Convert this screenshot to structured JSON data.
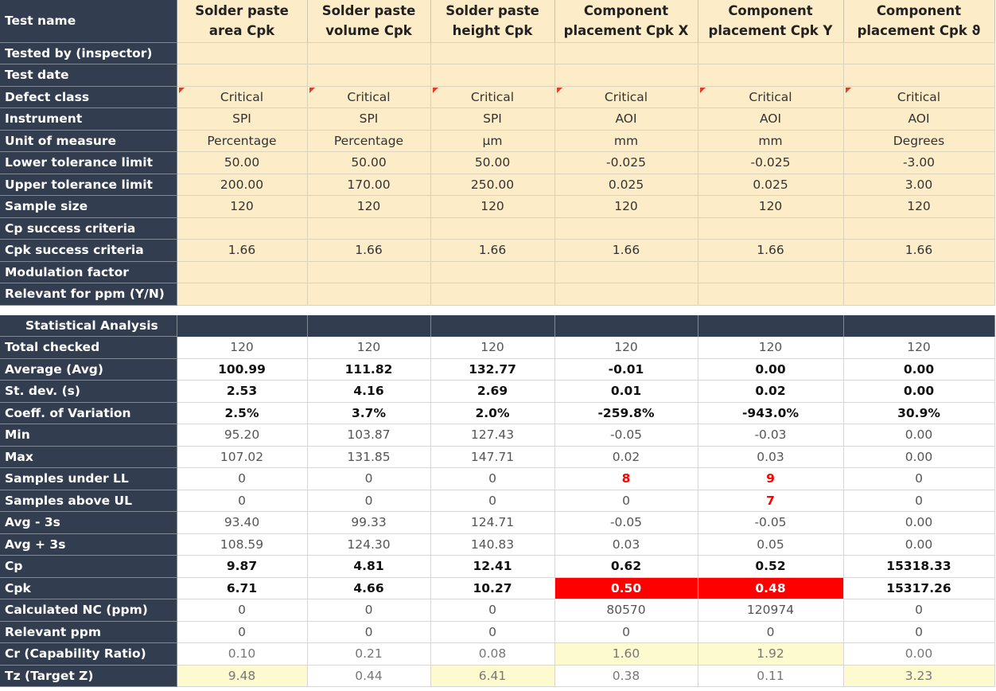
{
  "header": {
    "label": "Test name",
    "columns": [
      "Solder paste area Cpk",
      "Solder paste volume Cpk",
      "Solder paste height Cpk",
      "Component placement Cpk X",
      "Component placement Cpk Y",
      "Component placement Cpk ϑ"
    ]
  },
  "info_rows": [
    {
      "label": "Tested by (inspector)",
      "values": [
        "",
        "",
        "",
        "",
        "",
        ""
      ]
    },
    {
      "label": "Test date",
      "values": [
        "",
        "",
        "",
        "",
        "",
        ""
      ]
    },
    {
      "label": "Defect class",
      "values": [
        "Critical",
        "Critical",
        "Critical",
        "Critical",
        "Critical",
        "Critical"
      ],
      "flagged": true
    },
    {
      "label": "Instrument",
      "values": [
        "SPI",
        "SPI",
        "SPI",
        "AOI",
        "AOI",
        "AOI"
      ]
    },
    {
      "label": "Unit of measure",
      "values": [
        "Percentage",
        "Percentage",
        "µm",
        "mm",
        "mm",
        "Degrees"
      ]
    },
    {
      "label": "Lower tolerance limit",
      "values": [
        "50.00",
        "50.00",
        "50.00",
        "-0.025",
        "-0.025",
        "-3.00"
      ]
    },
    {
      "label": "Upper tolerance limit",
      "values": [
        "200.00",
        "170.00",
        "250.00",
        "0.025",
        "0.025",
        "3.00"
      ]
    },
    {
      "label": "Sample size",
      "values": [
        "120",
        "120",
        "120",
        "120",
        "120",
        "120"
      ]
    },
    {
      "label": "Cp success criteria",
      "values": [
        "",
        "",
        "",
        "",
        "",
        ""
      ]
    },
    {
      "label": "Cpk success criteria",
      "values": [
        "1.66",
        "1.66",
        "1.66",
        "1.66",
        "1.66",
        "1.66"
      ]
    },
    {
      "label": "Modulation factor",
      "values": [
        "",
        "",
        "",
        "",
        "",
        ""
      ]
    },
    {
      "label": "Relevant for ppm (Y/N)",
      "values": [
        "",
        "",
        "",
        "",
        "",
        ""
      ]
    }
  ],
  "stats_section": {
    "title": "Statistical Analysis",
    "rows": [
      {
        "label": "Total checked",
        "values": [
          "120",
          "120",
          "120",
          "120",
          "120",
          "120"
        ]
      },
      {
        "label": "Average (Avg)",
        "values": [
          "100.99",
          "111.82",
          "132.77",
          "-0.01",
          "0.00",
          "0.00"
        ],
        "bold": true
      },
      {
        "label": "St. dev. (s)",
        "values": [
          "2.53",
          "4.16",
          "2.69",
          "0.01",
          "0.02",
          "0.00"
        ],
        "bold": true
      },
      {
        "label": "Coeff. of Variation",
        "values": [
          "2.5%",
          "3.7%",
          "2.0%",
          "-259.8%",
          "-943.0%",
          "30.9%"
        ],
        "bold": true
      },
      {
        "label": "Min",
        "values": [
          "95.20",
          "103.87",
          "127.43",
          "-0.05",
          "-0.03",
          "0.00"
        ]
      },
      {
        "label": "Max",
        "values": [
          "107.02",
          "131.85",
          "147.71",
          "0.02",
          "0.03",
          "0.00"
        ]
      },
      {
        "label": "Samples under LL",
        "values": [
          "0",
          "0",
          "0",
          "8",
          "9",
          "0"
        ],
        "warn_cells": [
          3,
          4
        ]
      },
      {
        "label": "Samples above UL",
        "values": [
          "0",
          "0",
          "0",
          "0",
          "7",
          "0"
        ],
        "warn_cells": [
          4
        ]
      },
      {
        "label": "Avg - 3s",
        "values": [
          "93.40",
          "99.33",
          "124.71",
          "-0.05",
          "-0.05",
          "0.00"
        ]
      },
      {
        "label": "Avg + 3s",
        "values": [
          "108.59",
          "124.30",
          "140.83",
          "0.03",
          "0.05",
          "0.00"
        ]
      },
      {
        "label": "Cp",
        "values": [
          "9.87",
          "4.81",
          "12.41",
          "0.62",
          "0.52",
          "15318.33"
        ],
        "bold": true
      },
      {
        "label": "Cpk",
        "values": [
          "6.71",
          "4.66",
          "10.27",
          "0.50",
          "0.48",
          "15317.26"
        ],
        "bold": true,
        "alarm_cells": [
          3,
          4
        ]
      },
      {
        "label": "Calculated NC (ppm)",
        "values": [
          "0",
          "0",
          "0",
          "80570",
          "120974",
          "0"
        ]
      },
      {
        "label": "Relevant ppm",
        "values": [
          "0",
          "0",
          "0",
          "0",
          "0",
          "0"
        ]
      },
      {
        "label": "Cr (Capability Ratio)",
        "values": [
          "0.10",
          "0.21",
          "0.08",
          "1.60",
          "1.92",
          "0.00"
        ],
        "grey": true,
        "highlight_cells": [
          3,
          4
        ]
      },
      {
        "label": "Tz (Target Z)",
        "values": [
          "9.48",
          "0.44",
          "6.41",
          "0.38",
          "0.11",
          "3.23"
        ],
        "grey": true,
        "highlight_cells": [
          0,
          2,
          5
        ]
      }
    ]
  },
  "colors": {
    "label_bg": "#323d4f",
    "info_bg": "#fdecc8",
    "alarm_red": "#ff0000",
    "highlight_yellow": "#fdfad0"
  }
}
